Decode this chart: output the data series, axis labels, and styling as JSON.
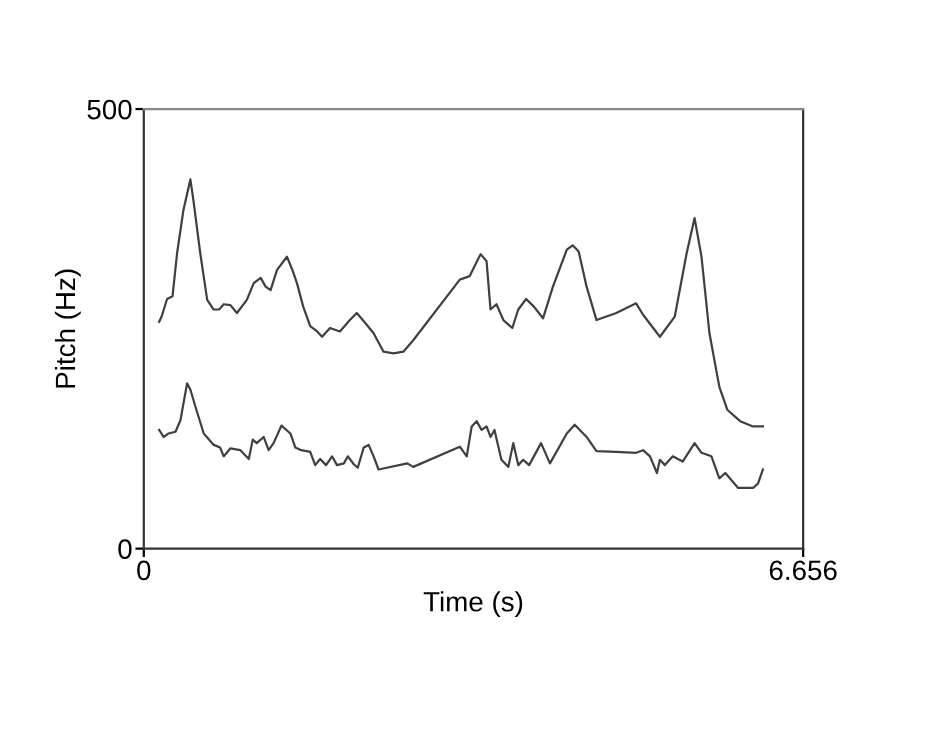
{
  "chart_data": {
    "type": "line",
    "xlabel": "Time (s)",
    "ylabel": "Pitch (Hz)",
    "xlim": [
      0,
      6.656
    ],
    "ylim": [
      0,
      500
    ],
    "xticks": [
      0,
      6.656
    ],
    "yticks": [
      0,
      500
    ],
    "grid": false,
    "legend": false,
    "marker": "none",
    "line_style": "solid",
    "series": [
      {
        "color": "#404040",
        "x": [
          0.155,
          0.18,
          0.235,
          0.29,
          0.336,
          0.4,
          0.47,
          0.5,
          0.57,
          0.64,
          0.706,
          0.76,
          0.807,
          0.874,
          0.94,
          1.04,
          1.11,
          1.18,
          1.23,
          1.28,
          1.345,
          1.445,
          1.5,
          1.546,
          1.61,
          1.68,
          1.75,
          1.8,
          1.88,
          1.98,
          2.08,
          2.15,
          2.24,
          2.32,
          2.42,
          2.52,
          2.62,
          2.72,
          3.19,
          3.29,
          3.4,
          3.46,
          3.5,
          3.56,
          3.63,
          3.72,
          3.78,
          3.86,
          3.94,
          4.03,
          4.13,
          4.27,
          4.33,
          4.39,
          4.47,
          4.57,
          4.77,
          4.97,
          5.04,
          5.21,
          5.36,
          5.48,
          5.56,
          5.63,
          5.71,
          5.81,
          5.89,
          6.02,
          6.15,
          6.25
        ],
        "values": [
          258,
          264,
          284,
          287,
          336,
          385,
          420,
          397,
          336,
          283,
          272,
          272,
          278,
          277,
          268,
          283,
          302,
          308,
          298,
          294,
          317,
          332,
          317,
          302,
          275,
          253,
          247,
          241,
          251,
          247,
          260,
          268,
          256,
          245,
          224,
          222,
          224,
          237,
          306,
          310,
          335,
          327,
          272,
          278,
          260,
          251,
          272,
          284,
          275,
          262,
          298,
          340,
          345,
          338,
          298,
          260,
          268,
          279,
          266,
          241,
          264,
          336,
          376,
          332,
          245,
          184,
          158,
          145,
          139,
          139
        ]
      },
      {
        "color": "#404040",
        "x": [
          0.155,
          0.2,
          0.25,
          0.32,
          0.37,
          0.437,
          0.47,
          0.52,
          0.605,
          0.706,
          0.77,
          0.807,
          0.874,
          0.975,
          1.06,
          1.1,
          1.14,
          1.21,
          1.26,
          1.31,
          1.39,
          1.48,
          1.53,
          1.59,
          1.68,
          1.73,
          1.78,
          1.84,
          1.9,
          1.95,
          2.02,
          2.06,
          2.12,
          2.16,
          2.22,
          2.27,
          2.32,
          2.37,
          2.66,
          2.72,
          3.19,
          3.26,
          3.31,
          3.36,
          3.41,
          3.46,
          3.5,
          3.54,
          3.61,
          3.68,
          3.73,
          3.78,
          3.83,
          3.89,
          4.01,
          4.1,
          4.27,
          4.35,
          4.47,
          4.57,
          4.77,
          4.97,
          5.04,
          5.11,
          5.18,
          5.21,
          5.26,
          5.34,
          5.44,
          5.56,
          5.63,
          5.73,
          5.81,
          5.87,
          6.0,
          6.15,
          6.2,
          6.25
        ],
        "values": [
          135,
          127,
          131,
          133,
          146,
          188,
          181,
          162,
          131,
          118,
          115,
          105,
          114,
          112,
          102,
          124,
          120,
          127,
          112,
          120,
          140,
          131,
          115,
          112,
          110,
          95,
          102,
          95,
          105,
          95,
          97,
          105,
          96,
          92,
          115,
          118,
          105,
          90,
          97,
          93,
          116,
          105,
          139,
          145,
          135,
          139,
          127,
          135,
          101,
          93,
          120,
          95,
          101,
          95,
          120,
          97,
          131,
          141,
          127,
          111,
          110,
          109,
          112,
          105,
          86,
          101,
          95,
          105,
          99,
          120,
          109,
          105,
          80,
          86,
          69,
          69,
          74,
          90
        ]
      }
    ]
  }
}
